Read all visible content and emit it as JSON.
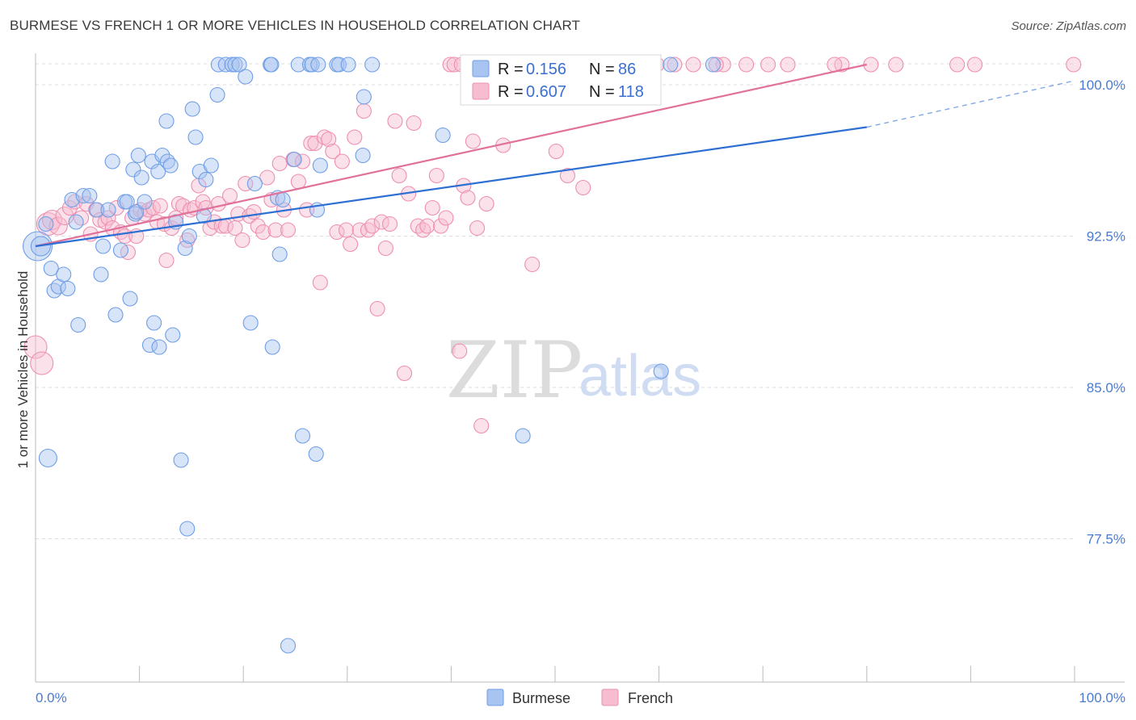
{
  "header": {
    "title": "BURMESE VS FRENCH 1 OR MORE VEHICLES IN HOUSEHOLD CORRELATION CHART",
    "source": "Source: ZipAtlas.com"
  },
  "colors": {
    "burmese": "#6f9ee6",
    "burmese_fill": "#a8c4f0",
    "burmese_line": "#2d6fd3",
    "french": "#ee8fb0",
    "french_fill": "#f6bdd0",
    "french_line": "#e0719a",
    "grid": "#dddddd",
    "axis_tick": "#4a7bd0"
  },
  "chart_data": {
    "type": "scatter",
    "title": "BURMESE VS FRENCH 1 OR MORE VEHICLES IN HOUSEHOLD CORRELATION CHART",
    "xlabel": "",
    "ylabel": "1 or more Vehicles in Household",
    "xlim": [
      0,
      100
    ],
    "ylim": [
      70.4,
      101.4
    ],
    "x_tick_labels": [
      "0.0%",
      "100.0%"
    ],
    "y_ticks": [
      77.5,
      85.0,
      92.5,
      100.0
    ],
    "y_tick_labels": [
      "77.5%",
      "85.0%",
      "92.5%",
      "100.0%"
    ],
    "legend": {
      "placement": "top-center",
      "entries": [
        {
          "series": "Burmese",
          "r_label": "R =",
          "r": "0.156",
          "n_label": "N =",
          "n": "86"
        },
        {
          "series": "French",
          "r_label": "R =",
          "r": "0.607",
          "n_label": "N =",
          "n": "118"
        }
      ]
    },
    "bottom_legend": [
      "Burmese",
      "French"
    ],
    "series": [
      {
        "name": "Burmese",
        "trend": {
          "x0": 0,
          "y0": 92.0,
          "x1": 80,
          "y1": 97.9,
          "dash_to_x": 100,
          "dash_to_y": 100.2
        },
        "points": [
          [
            0.2,
            92.0,
            18
          ],
          [
            0.5,
            92.0,
            12
          ],
          [
            1.0,
            93.1,
            9
          ],
          [
            1.5,
            90.9,
            9
          ],
          [
            1.8,
            89.8,
            9
          ],
          [
            2.2,
            90.0,
            9
          ],
          [
            2.7,
            90.6,
            9
          ],
          [
            3.1,
            89.9,
            9
          ],
          [
            3.9,
            93.2,
            9
          ],
          [
            4.1,
            88.1,
            9
          ],
          [
            3.5,
            94.3,
            9
          ],
          [
            4.6,
            94.5,
            9
          ],
          [
            5.2,
            94.5,
            9
          ],
          [
            5.9,
            93.8,
            9
          ],
          [
            6.3,
            90.6,
            9
          ],
          [
            6.5,
            92.0,
            9
          ],
          [
            7.0,
            93.8,
            9
          ],
          [
            7.4,
            96.2,
            9
          ],
          [
            7.7,
            88.6,
            9
          ],
          [
            8.2,
            91.8,
            9
          ],
          [
            8.6,
            94.2,
            9
          ],
          [
            8.8,
            94.2,
            9
          ],
          [
            9.1,
            89.4,
            9
          ],
          [
            9.4,
            95.8,
            9
          ],
          [
            9.6,
            93.6,
            9
          ],
          [
            9.7,
            93.7,
            9
          ],
          [
            9.9,
            96.5,
            9
          ],
          [
            10.2,
            95.4,
            9
          ],
          [
            10.5,
            94.2,
            9
          ],
          [
            11.0,
            87.1,
            9
          ],
          [
            11.2,
            96.2,
            9
          ],
          [
            11.4,
            88.2,
            9
          ],
          [
            11.8,
            95.7,
            9
          ],
          [
            11.9,
            87.0,
            9
          ],
          [
            12.2,
            96.5,
            9
          ],
          [
            12.6,
            98.2,
            9
          ],
          [
            12.7,
            96.2,
            9
          ],
          [
            13.0,
            96.0,
            9
          ],
          [
            13.2,
            87.6,
            9
          ],
          [
            13.5,
            93.2,
            9
          ],
          [
            14.0,
            81.4,
            9
          ],
          [
            14.4,
            91.9,
            9
          ],
          [
            14.6,
            78.0,
            9
          ],
          [
            14.8,
            92.5,
            9
          ],
          [
            15.1,
            98.8,
            9
          ],
          [
            15.4,
            97.4,
            9
          ],
          [
            15.8,
            95.7,
            9
          ],
          [
            16.2,
            93.5,
            9
          ],
          [
            16.4,
            95.3,
            9
          ],
          [
            16.9,
            96.0,
            9
          ],
          [
            17.5,
            99.5,
            9
          ],
          [
            17.6,
            101.0,
            9
          ],
          [
            18.3,
            101.0,
            9
          ],
          [
            18.9,
            101.0,
            9
          ],
          [
            19.2,
            101.0,
            9
          ],
          [
            19.6,
            101.0,
            9
          ],
          [
            20.2,
            100.4,
            9
          ],
          [
            20.7,
            88.2,
            9
          ],
          [
            21.1,
            95.1,
            9
          ],
          [
            22.6,
            101.0,
            9
          ],
          [
            22.7,
            101.0,
            9
          ],
          [
            22.8,
            87.0,
            9
          ],
          [
            23.3,
            94.4,
            9
          ],
          [
            23.5,
            91.6,
            9
          ],
          [
            23.8,
            94.3,
            9
          ],
          [
            24.3,
            72.2,
            9
          ],
          [
            24.9,
            96.3,
            9
          ],
          [
            25.3,
            101.0,
            9
          ],
          [
            25.7,
            82.6,
            9
          ],
          [
            26.4,
            101.0,
            9
          ],
          [
            26.6,
            101.0,
            9
          ],
          [
            27.0,
            81.7,
            9
          ],
          [
            27.2,
            101.0,
            9
          ],
          [
            27.4,
            96.0,
            9
          ],
          [
            27.1,
            93.8,
            9
          ],
          [
            29.0,
            101.0,
            9
          ],
          [
            29.2,
            101.0,
            9
          ],
          [
            30.1,
            101.0,
            9
          ],
          [
            31.5,
            96.5,
            9
          ],
          [
            31.6,
            99.4,
            9
          ],
          [
            32.4,
            101.0,
            9
          ],
          [
            39.2,
            97.5,
            9
          ],
          [
            43.8,
            101.0,
            9
          ],
          [
            46.3,
            101.0,
            9
          ],
          [
            60.2,
            85.8,
            9
          ],
          [
            65.2,
            101.0,
            9
          ],
          [
            61.1,
            101.0,
            9
          ],
          [
            55.1,
            101.0,
            9
          ],
          [
            46.9,
            82.6,
            9
          ],
          [
            1.2,
            81.5,
            11
          ]
        ]
      },
      {
        "name": "French",
        "trend": {
          "x0": 0,
          "y0": 92.0,
          "x1": 80,
          "y1": 101.0
        },
        "points": [
          [
            0.0,
            87.0,
            14
          ],
          [
            0.6,
            86.2,
            14
          ],
          [
            1.2,
            93.1,
            14
          ],
          [
            1.6,
            93.3,
            12
          ],
          [
            2.2,
            93.0,
            11
          ],
          [
            2.8,
            93.5,
            11
          ],
          [
            3.3,
            93.9,
            9
          ],
          [
            3.8,
            94.2,
            9
          ],
          [
            4.4,
            93.4,
            9
          ],
          [
            4.9,
            94.1,
            9
          ],
          [
            5.3,
            92.6,
            9
          ],
          [
            5.8,
            93.8,
            9
          ],
          [
            6.2,
            93.3,
            9
          ],
          [
            6.7,
            93.2,
            9
          ],
          [
            7.0,
            93.4,
            9
          ],
          [
            7.4,
            92.9,
            9
          ],
          [
            7.8,
            93.9,
            9
          ],
          [
            8.2,
            92.7,
            9
          ],
          [
            8.6,
            92.5,
            9
          ],
          [
            8.9,
            91.7,
            9
          ],
          [
            9.3,
            93.4,
            9
          ],
          [
            9.7,
            92.5,
            9
          ],
          [
            10.1,
            93.8,
            9
          ],
          [
            10.5,
            93.6,
            9
          ],
          [
            10.9,
            93.8,
            9
          ],
          [
            11.3,
            93.9,
            9
          ],
          [
            11.7,
            93.2,
            9
          ],
          [
            12.0,
            94.0,
            9
          ],
          [
            12.4,
            93.1,
            9
          ],
          [
            12.6,
            91.3,
            9
          ],
          [
            13.1,
            92.9,
            9
          ],
          [
            13.5,
            93.4,
            9
          ],
          [
            13.8,
            94.1,
            9
          ],
          [
            14.2,
            94.0,
            9
          ],
          [
            14.6,
            92.3,
            9
          ],
          [
            14.9,
            93.8,
            9
          ],
          [
            15.3,
            93.9,
            9
          ],
          [
            15.7,
            95.0,
            9
          ],
          [
            16.1,
            94.2,
            9
          ],
          [
            16.4,
            93.9,
            9
          ],
          [
            16.8,
            92.9,
            9
          ],
          [
            17.2,
            93.2,
            9
          ],
          [
            17.6,
            94.1,
            9
          ],
          [
            17.9,
            93.0,
            9
          ],
          [
            18.3,
            93.0,
            9
          ],
          [
            18.7,
            94.5,
            9
          ],
          [
            19.2,
            92.9,
            9
          ],
          [
            19.5,
            93.6,
            9
          ],
          [
            19.9,
            92.3,
            9
          ],
          [
            20.2,
            95.1,
            9
          ],
          [
            20.6,
            93.5,
            9
          ],
          [
            21.0,
            93.7,
            9
          ],
          [
            21.4,
            93.0,
            9
          ],
          [
            21.9,
            92.7,
            9
          ],
          [
            22.3,
            95.4,
            9
          ],
          [
            22.7,
            94.3,
            9
          ],
          [
            23.1,
            92.8,
            9
          ],
          [
            23.5,
            96.1,
            9
          ],
          [
            23.9,
            93.8,
            9
          ],
          [
            24.3,
            92.8,
            9
          ],
          [
            24.8,
            96.3,
            9
          ],
          [
            25.3,
            95.2,
            9
          ],
          [
            25.7,
            96.2,
            9
          ],
          [
            26.1,
            93.8,
            9
          ],
          [
            26.5,
            97.1,
            9
          ],
          [
            26.9,
            97.1,
            9
          ],
          [
            27.4,
            90.2,
            9
          ],
          [
            27.8,
            97.4,
            9
          ],
          [
            28.2,
            97.3,
            9
          ],
          [
            28.6,
            96.7,
            9
          ],
          [
            29.0,
            92.7,
            9
          ],
          [
            29.5,
            96.2,
            9
          ],
          [
            29.9,
            92.8,
            9
          ],
          [
            30.3,
            92.1,
            9
          ],
          [
            30.7,
            97.4,
            9
          ],
          [
            31.2,
            92.8,
            9
          ],
          [
            31.6,
            98.7,
            9
          ],
          [
            32.0,
            92.8,
            9
          ],
          [
            32.4,
            93.0,
            9
          ],
          [
            32.9,
            88.9,
            9
          ],
          [
            33.3,
            93.2,
            9
          ],
          [
            33.7,
            91.9,
            9
          ],
          [
            34.1,
            93.1,
            9
          ],
          [
            34.6,
            98.2,
            9
          ],
          [
            35.0,
            95.5,
            9
          ],
          [
            35.5,
            85.7,
            9
          ],
          [
            35.9,
            94.6,
            9
          ],
          [
            36.4,
            98.1,
            9
          ],
          [
            36.8,
            93.0,
            9
          ],
          [
            37.3,
            92.8,
            9
          ],
          [
            37.7,
            93.0,
            9
          ],
          [
            38.2,
            93.9,
            9
          ],
          [
            38.6,
            95.5,
            9
          ],
          [
            39.0,
            93.0,
            9
          ],
          [
            39.5,
            93.4,
            9
          ],
          [
            39.9,
            101.0,
            9
          ],
          [
            40.3,
            101.0,
            9
          ],
          [
            40.8,
            86.8,
            9
          ],
          [
            41.2,
            95.0,
            9
          ],
          [
            41.6,
            94.4,
            9
          ],
          [
            42.1,
            97.2,
            9
          ],
          [
            42.5,
            92.9,
            9
          ],
          [
            42.9,
            83.1,
            9
          ],
          [
            43.4,
            94.1,
            9
          ],
          [
            45.0,
            97.0,
            9
          ],
          [
            47.8,
            91.1,
            9
          ],
          [
            50.1,
            96.7,
            9
          ],
          [
            51.2,
            95.5,
            9
          ],
          [
            52.7,
            94.9,
            9
          ],
          [
            55.5,
            101.0,
            9
          ],
          [
            59.0,
            101.0,
            9
          ],
          [
            59.8,
            101.0,
            9
          ],
          [
            61.5,
            101.0,
            9
          ],
          [
            63.3,
            101.0,
            9
          ],
          [
            66.2,
            101.0,
            9
          ],
          [
            68.4,
            101.0,
            9
          ],
          [
            70.5,
            101.0,
            9
          ],
          [
            72.4,
            101.0,
            9
          ],
          [
            77.6,
            101.0,
            9
          ],
          [
            80.4,
            101.0,
            9
          ],
          [
            82.8,
            101.0,
            9
          ],
          [
            88.7,
            101.0,
            9
          ],
          [
            90.4,
            101.0,
            9
          ],
          [
            99.9,
            101.0,
            9
          ],
          [
            41.0,
            101.0,
            9
          ],
          [
            52.5,
            101.0,
            9
          ],
          [
            65.5,
            101.0,
            9
          ],
          [
            76.9,
            101.0,
            9
          ]
        ]
      }
    ]
  },
  "watermark": {
    "zip": "ZIP",
    "atlas": "atlas"
  }
}
